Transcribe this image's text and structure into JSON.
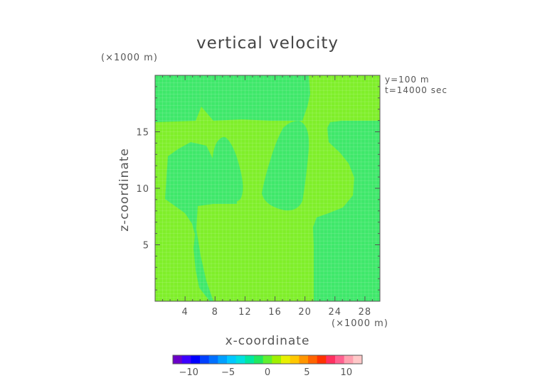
{
  "chart_data": {
    "type": "heatmap",
    "title": "vertical velocity",
    "xlabel": "x-coordinate",
    "ylabel": "z-coordinate",
    "x_unit": "(×1000 m)",
    "y_unit": "(×1000 m)",
    "annotations": [
      "y=100 m",
      "t=14000 sec"
    ],
    "xlim": [
      0,
      30
    ],
    "ylim": [
      0,
      20
    ],
    "x_ticks": [
      "4",
      "8",
      "12",
      "16",
      "20",
      "24",
      "28"
    ],
    "y_ticks": [
      "5",
      "10",
      "15"
    ],
    "background_level": 0,
    "background_color": "#7fef2a",
    "region_color": "#3fe86a",
    "regions_description": "Slightly negative vertical velocity regions (value just below 0) shown in a lighter green over a near-zero field",
    "colorbar": {
      "min": -12,
      "max": 12,
      "ticks": [
        "-10",
        "-5",
        "0",
        "5",
        "10"
      ],
      "colors": [
        "#6a00c8",
        "#3c00ff",
        "#0000ff",
        "#0040ff",
        "#0070ff",
        "#00a0ff",
        "#00c8ff",
        "#00e0e0",
        "#00e8a0",
        "#20e860",
        "#60f030",
        "#a0f000",
        "#e8f000",
        "#ffc800",
        "#ff9600",
        "#ff6400",
        "#ff3200",
        "#ff3060",
        "#ff6090",
        "#ffa0b0",
        "#ffc8c8"
      ]
    }
  }
}
